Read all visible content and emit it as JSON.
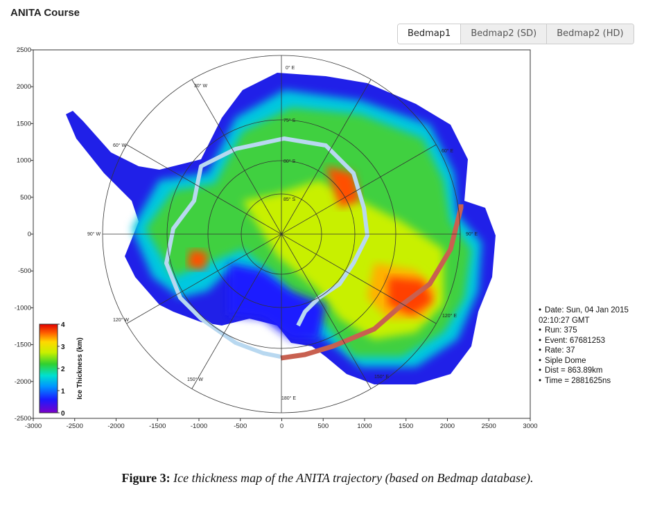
{
  "header": {
    "title": "ANITA Course"
  },
  "tabs": [
    "Bedmap1",
    "Bedmap2 (SD)",
    "Bedmap2 (HD)"
  ],
  "map": {
    "xlim": [
      -3000,
      3000
    ],
    "ylim": [
      -2500,
      2500
    ],
    "xticks": [
      -3000,
      -2500,
      -2000,
      -1500,
      -1000,
      -500,
      0,
      500,
      1000,
      1500,
      2000,
      2500,
      3000
    ],
    "yticks": [
      -2500,
      -2000,
      -1500,
      -1000,
      -500,
      0,
      500,
      1000,
      1500,
      2000,
      2500
    ],
    "longitude_labels": [
      "0° E",
      "30° W",
      "60° W",
      "90° W",
      "120° W",
      "150° W",
      "180° E",
      "150° E",
      "120° E",
      "90° E",
      "60° E"
    ],
    "latitude_labels": [
      "75° S",
      "80° S",
      "85° S"
    ],
    "colorbar": {
      "label": "Ice Thickness (km)",
      "ticks": [
        0,
        1,
        2,
        3,
        4
      ]
    }
  },
  "info": [
    "Date: Sun, 04 Jan 2015 02:10:27 GMT",
    "Run: 375",
    "Event: 67681253",
    "Rate: 37",
    "Siple Dome",
    "Dist = 863.89km",
    "Time = 2881625ns"
  ],
  "caption": {
    "label": "Figure 3:",
    "text": "Ice thickness map of the ANITA trajectory (based on Bedmap database)."
  }
}
